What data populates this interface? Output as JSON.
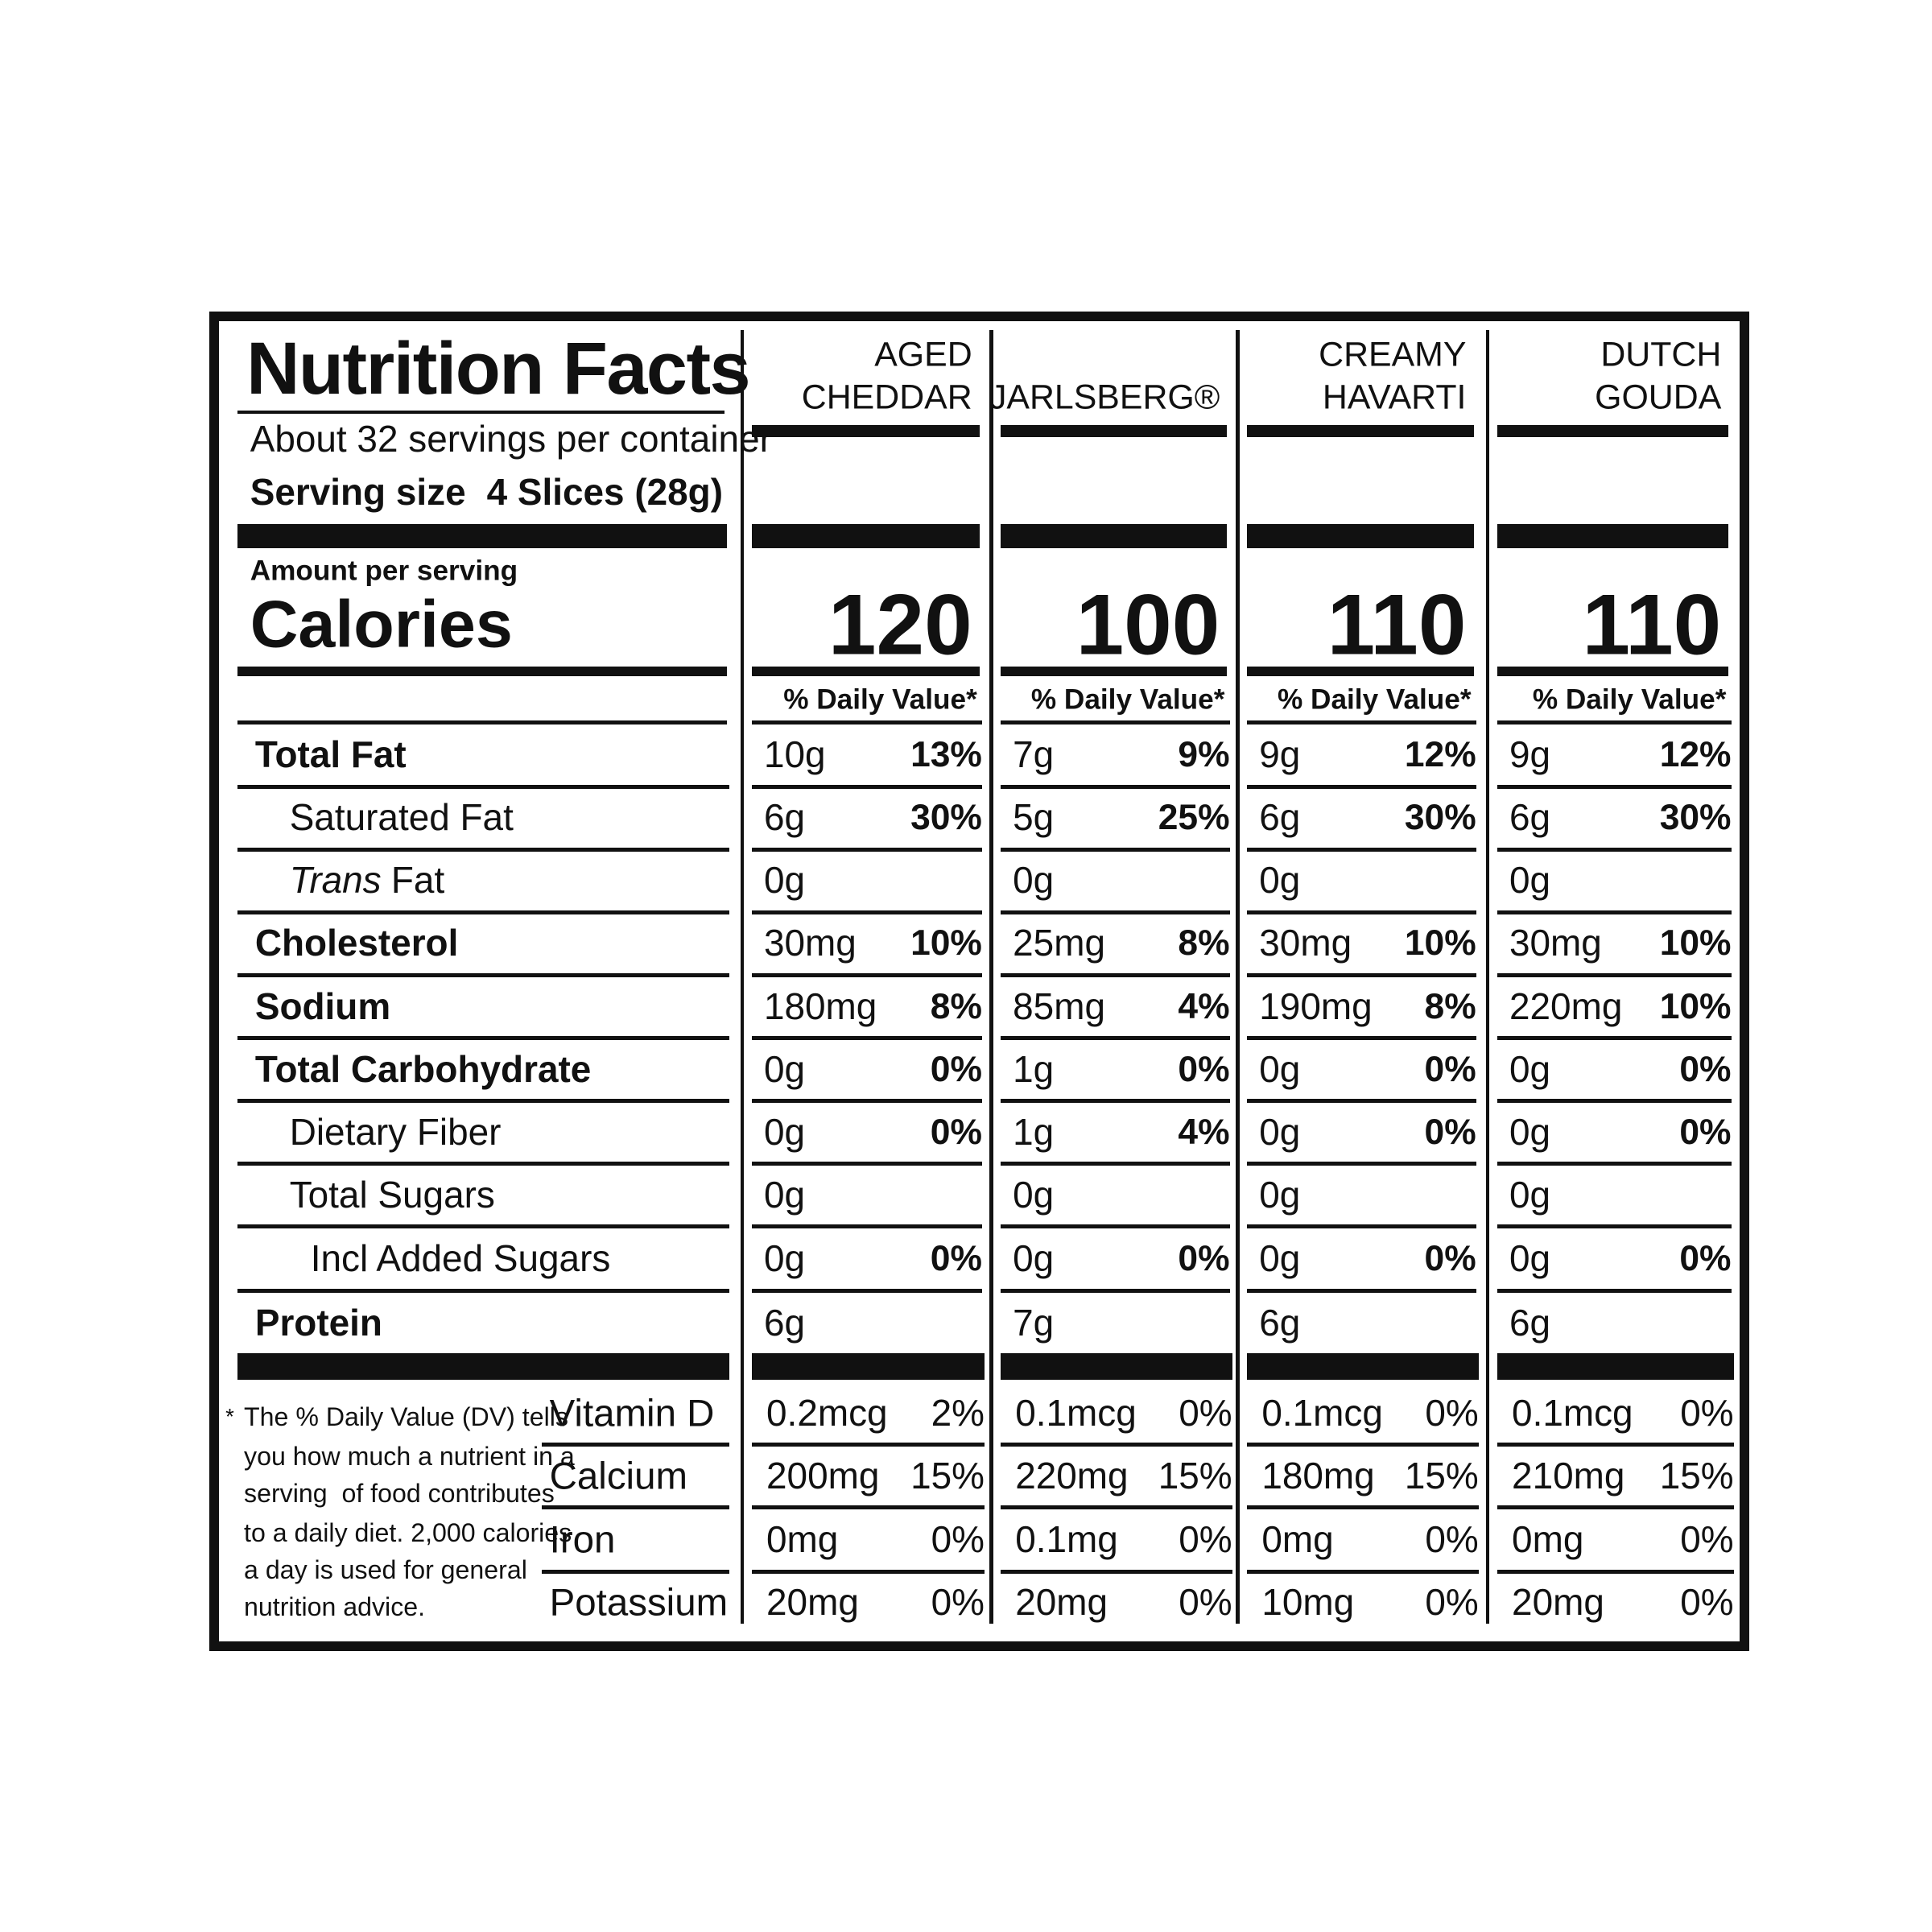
{
  "header": {
    "title": "Nutrition Facts",
    "servings": "About 32 servings per container",
    "serving_size_label": "Serving size",
    "serving_size": "4 Slices (28g)",
    "amount_per_serving": "Amount per serving",
    "calories_label": "Calories"
  },
  "nutrient_labels": [
    {
      "label": "Total Fat"
    },
    {
      "label": "Saturated Fat"
    },
    {
      "italic": "Trans",
      "label": "Fat"
    },
    {
      "label": "Cholesterol"
    },
    {
      "label": "Sodium"
    },
    {
      "label": "Total Carbohydrate"
    },
    {
      "label": "Dietary Fiber"
    },
    {
      "label": "Total Sugars"
    },
    {
      "label": "Incl Added Sugars"
    },
    {
      "label": "Protein"
    }
  ],
  "vitamin_labels": [
    "Vitamin D",
    "Calcium",
    "Iron",
    "Potassium"
  ],
  "footnote": [
    "*",
    "The % Daily Value (DV) tells",
    "you how much a nutrient in a",
    "serving  of food contributes",
    "to a daily diet. 2,000 calories",
    "a day is used for general",
    "nutrition advice."
  ],
  "products": [
    {
      "name_lines": [
        "AGED",
        "CHEDDAR"
      ],
      "calories": "120",
      "daily_value_header": "% Daily Value*",
      "nutrients": [
        [
          "10g",
          "13%"
        ],
        [
          "6g",
          "30%"
        ],
        [
          "0g"
        ],
        [
          "30mg",
          "10%"
        ],
        [
          "180mg",
          "8%"
        ],
        [
          "0g",
          "0%"
        ],
        [
          "0g",
          "0%"
        ],
        [
          "0g"
        ],
        [
          "0g",
          "0%"
        ],
        [
          "6g"
        ]
      ],
      "vitamins": [
        [
          "0.2mcg",
          "2%"
        ],
        [
          "200mg",
          "15%"
        ],
        [
          "0mg",
          "0%"
        ],
        [
          "20mg",
          "0%"
        ]
      ]
    },
    {
      "name_lines": [
        "JARLSBERG®"
      ],
      "calories": "100",
      "daily_value_header": "% Daily Value*",
      "nutrients": [
        [
          "7g",
          "9%"
        ],
        [
          "5g",
          "25%"
        ],
        [
          "0g"
        ],
        [
          "25mg",
          "8%"
        ],
        [
          "85mg",
          "4%"
        ],
        [
          "1g",
          "0%"
        ],
        [
          "1g",
          "4%"
        ],
        [
          "0g"
        ],
        [
          "0g",
          "0%"
        ],
        [
          "7g"
        ]
      ],
      "vitamins": [
        [
          "0.1mcg",
          "0%"
        ],
        [
          "220mg",
          "15%"
        ],
        [
          "0.1mg",
          "0%"
        ],
        [
          "20mg",
          "0%"
        ]
      ]
    },
    {
      "name_lines": [
        "CREAMY",
        "HAVARTI"
      ],
      "calories": "110",
      "daily_value_header": "% Daily Value*",
      "nutrients": [
        [
          "9g",
          "12%"
        ],
        [
          "6g",
          "30%"
        ],
        [
          "0g"
        ],
        [
          "30mg",
          "10%"
        ],
        [
          "190mg",
          "8%"
        ],
        [
          "0g",
          "0%"
        ],
        [
          "0g",
          "0%"
        ],
        [
          "0g"
        ],
        [
          "0g",
          "0%"
        ],
        [
          "6g"
        ]
      ],
      "vitamins": [
        [
          "0.1mcg",
          "0%"
        ],
        [
          "180mg",
          "15%"
        ],
        [
          "0mg",
          "0%"
        ],
        [
          "10mg",
          "0%"
        ]
      ]
    },
    {
      "name_lines": [
        "DUTCH",
        "GOUDA"
      ],
      "calories": "110",
      "daily_value_header": "% Daily Value*",
      "nutrients": [
        [
          "9g",
          "12%"
        ],
        [
          "6g",
          "30%"
        ],
        [
          "0g"
        ],
        [
          "30mg",
          "10%"
        ],
        [
          "220mg",
          "10%"
        ],
        [
          "0g",
          "0%"
        ],
        [
          "0g",
          "0%"
        ],
        [
          "0g"
        ],
        [
          "0g",
          "0%"
        ],
        [
          "6g"
        ]
      ],
      "vitamins": [
        [
          "0.1mcg",
          "0%"
        ],
        [
          "210mg",
          "15%"
        ],
        [
          "0mg",
          "0%"
        ],
        [
          "20mg",
          "0%"
        ]
      ]
    }
  ]
}
